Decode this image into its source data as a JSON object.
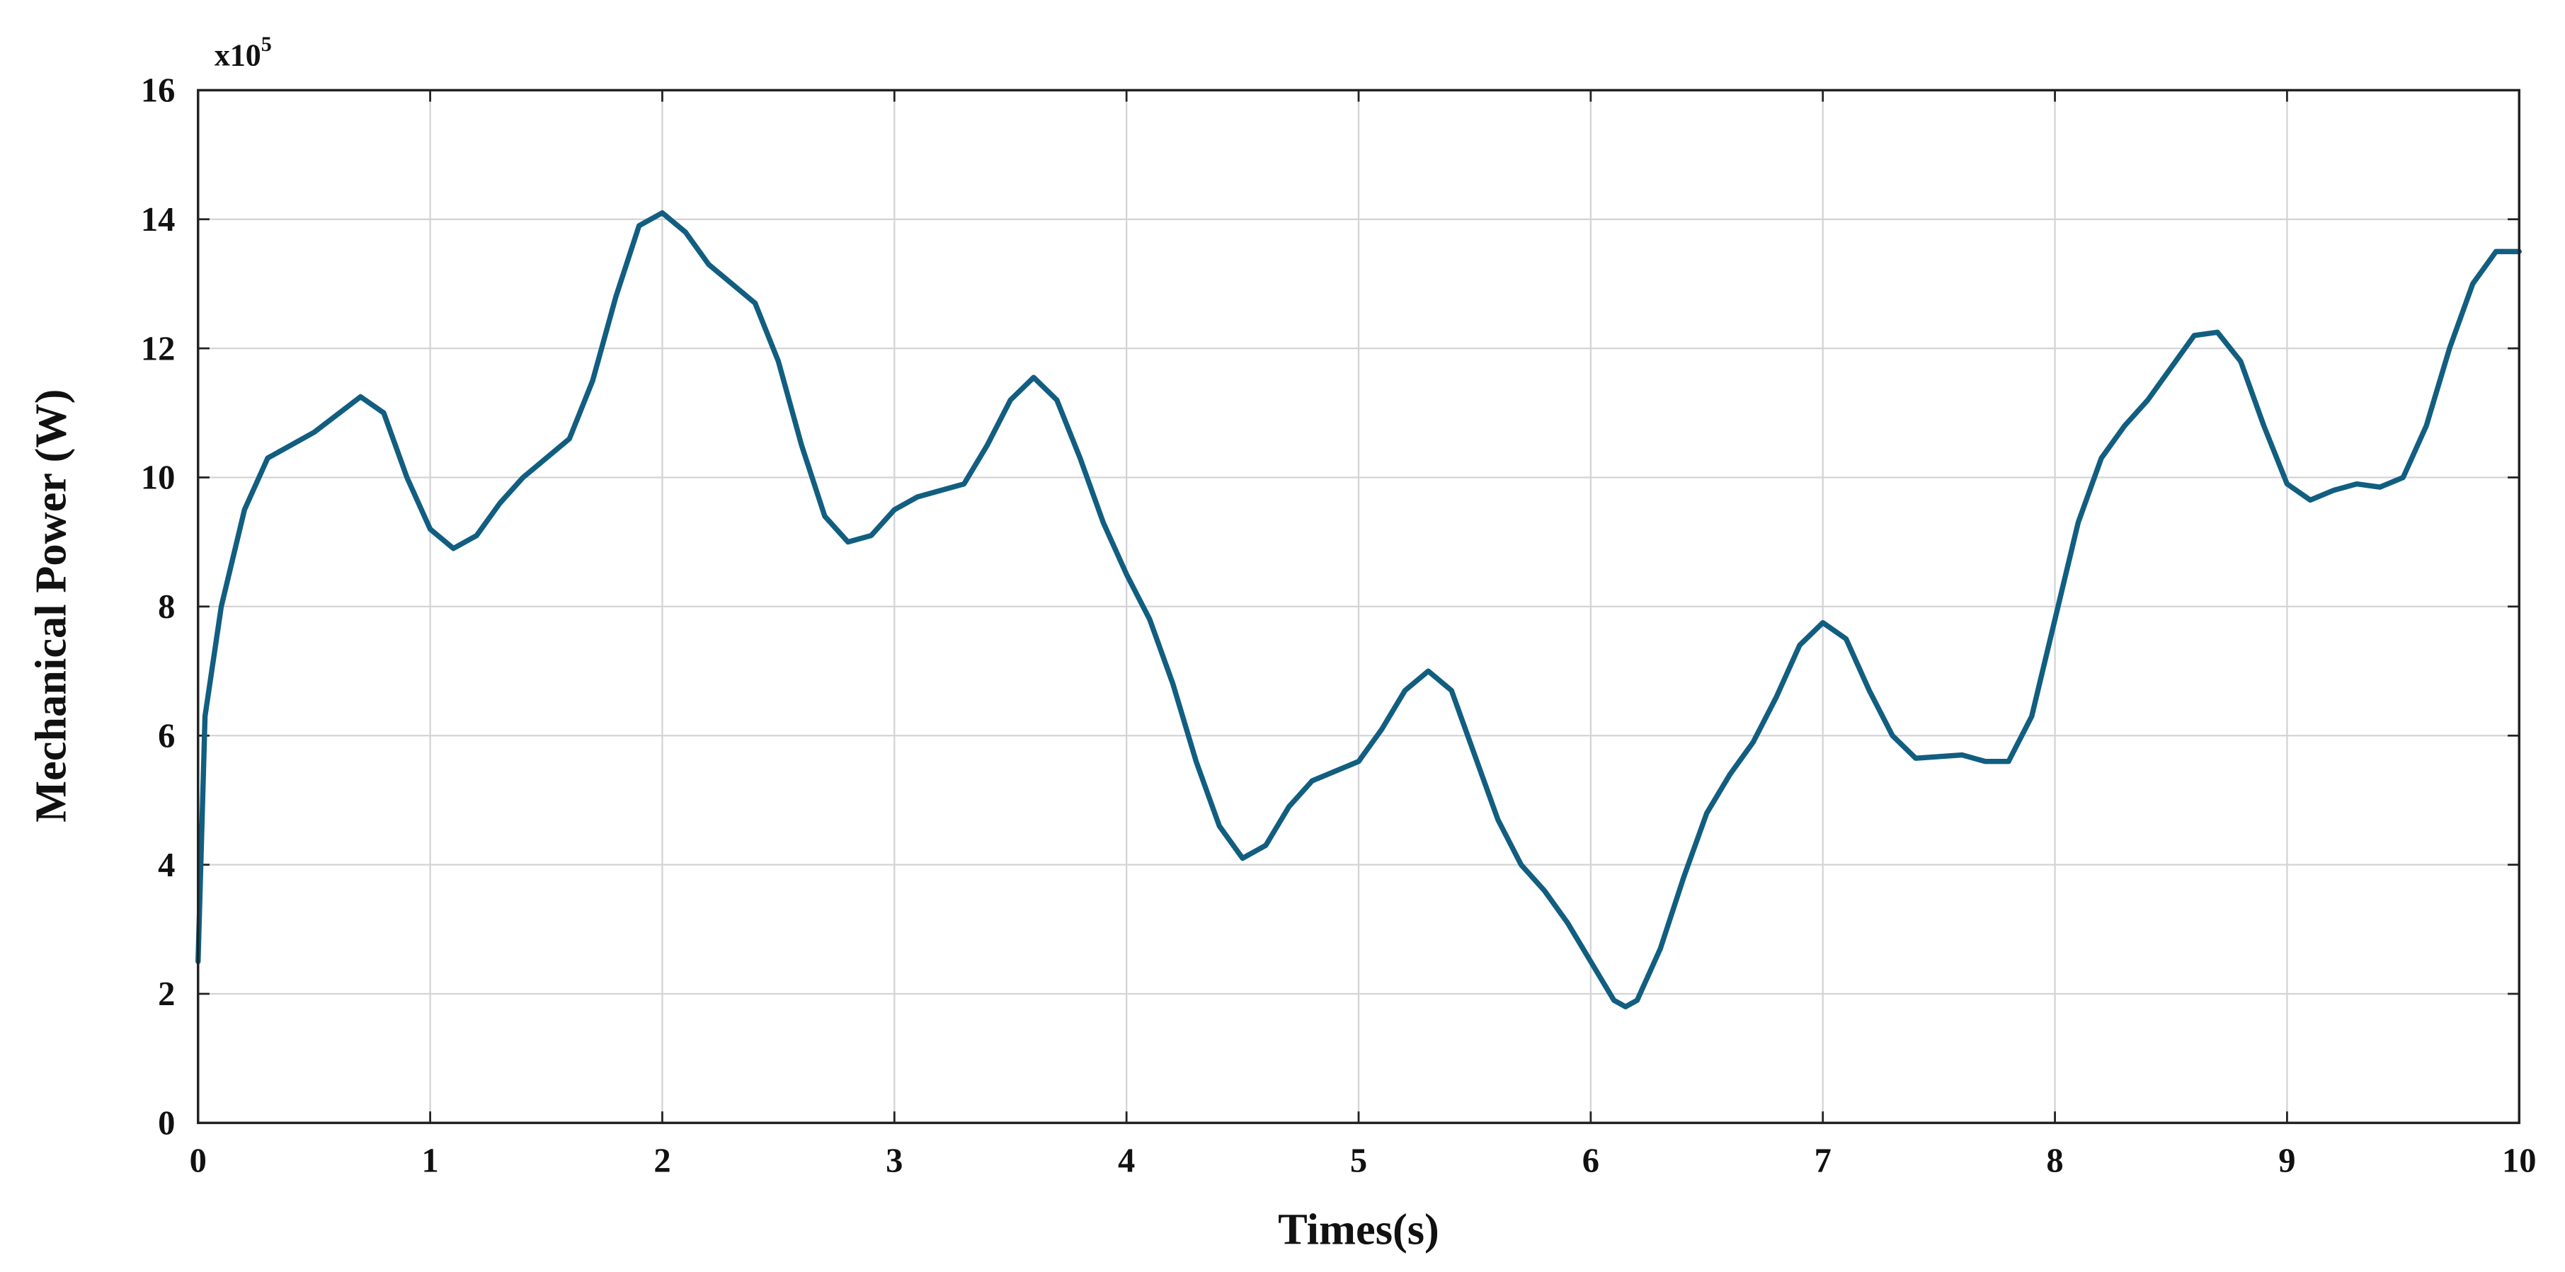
{
  "chart_data": {
    "type": "line",
    "x_label": "Times(s)",
    "y_label": "Mechanical Power (W)",
    "y_multiplier": {
      "base": "x10",
      "exponent": "5"
    },
    "xlim": [
      0,
      10
    ],
    "xticks": [
      0,
      1,
      2,
      3,
      4,
      5,
      6,
      7,
      8,
      9,
      10
    ],
    "ylim": [
      0,
      16
    ],
    "yticks": [
      0,
      2,
      4,
      6,
      8,
      10,
      12,
      14,
      16
    ],
    "grid": true,
    "series": [
      {
        "color": "#115e80",
        "x": [
          0,
          0.03,
          0.1,
          0.2,
          0.3,
          0.5,
          0.7,
          0.8,
          0.9,
          1.0,
          1.1,
          1.2,
          1.3,
          1.4,
          1.6,
          1.7,
          1.8,
          1.9,
          2.0,
          2.1,
          2.2,
          2.4,
          2.5,
          2.6,
          2.7,
          2.8,
          2.9,
          3.0,
          3.1,
          3.3,
          3.4,
          3.5,
          3.6,
          3.7,
          3.8,
          3.9,
          4.0,
          4.1,
          4.2,
          4.3,
          4.4,
          4.5,
          4.6,
          4.7,
          4.8,
          5.0,
          5.1,
          5.2,
          5.3,
          5.4,
          5.5,
          5.6,
          5.7,
          5.8,
          5.9,
          6.0,
          6.1,
          6.15,
          6.2,
          6.3,
          6.4,
          6.5,
          6.6,
          6.7,
          6.8,
          6.9,
          7.0,
          7.1,
          7.2,
          7.3,
          7.4,
          7.6,
          7.7,
          7.8,
          7.9,
          8.0,
          8.1,
          8.2,
          8.3,
          8.4,
          8.5,
          8.6,
          8.7,
          8.8,
          8.9,
          9.0,
          9.1,
          9.2,
          9.3,
          9.4,
          9.5,
          9.6,
          9.7,
          9.8,
          9.9,
          10.0
        ],
        "values": [
          2.5,
          6.3,
          8.0,
          9.5,
          10.3,
          10.7,
          11.25,
          11.0,
          10.0,
          9.2,
          8.9,
          9.1,
          9.6,
          10.0,
          10.6,
          11.5,
          12.8,
          13.9,
          14.1,
          13.8,
          13.3,
          12.7,
          11.8,
          10.5,
          9.4,
          9.0,
          9.1,
          9.5,
          9.7,
          9.9,
          10.5,
          11.2,
          11.55,
          11.2,
          10.3,
          9.3,
          8.5,
          7.8,
          6.8,
          5.6,
          4.6,
          4.1,
          4.3,
          4.9,
          5.3,
          5.6,
          6.1,
          6.7,
          7.0,
          6.7,
          5.7,
          4.7,
          4.0,
          3.6,
          3.1,
          2.5,
          1.9,
          1.8,
          1.9,
          2.7,
          3.8,
          4.8,
          5.4,
          5.9,
          6.6,
          7.4,
          7.75,
          7.5,
          6.7,
          6.0,
          5.65,
          5.7,
          5.6,
          5.6,
          6.3,
          7.8,
          9.3,
          10.3,
          10.8,
          11.2,
          11.7,
          12.2,
          12.25,
          11.8,
          10.8,
          9.9,
          9.65,
          9.8,
          9.9,
          9.85,
          10.0,
          10.8,
          12.0,
          13.0,
          13.5,
          13.5
        ]
      }
    ]
  }
}
